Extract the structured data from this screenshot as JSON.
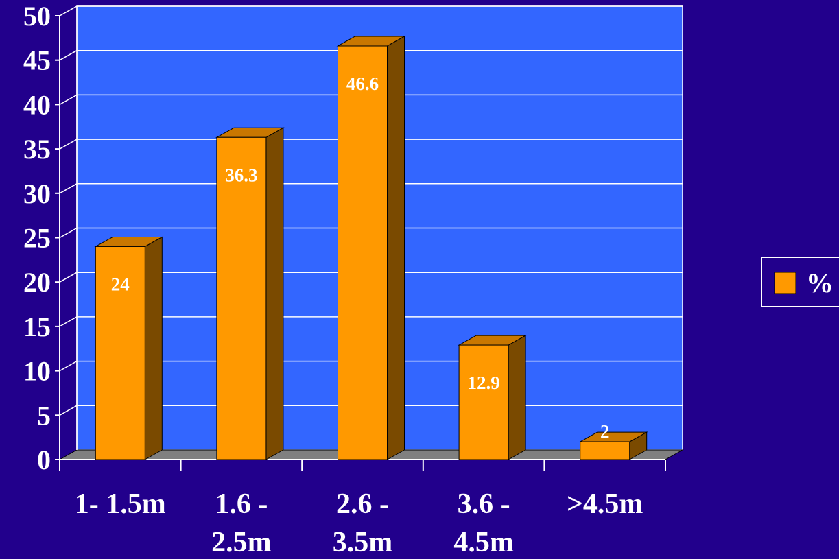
{
  "chart_data": {
    "type": "bar",
    "categories": [
      [
        "1- 1.5m"
      ],
      [
        "1.6 -",
        "2.5m"
      ],
      [
        "2.6 -",
        "3.5m"
      ],
      [
        "3.6 -",
        "4.5m"
      ],
      [
        ">4.5m"
      ]
    ],
    "series": [
      {
        "name": "%",
        "values": [
          24,
          36.3,
          46.6,
          12.9,
          2
        ]
      }
    ],
    "data_labels": [
      "24",
      "36.3",
      "46.6",
      "12.9",
      "2"
    ],
    "y_ticks": [
      "0",
      "5",
      "10",
      "15",
      "20",
      "25",
      "30",
      "35",
      "40",
      "45",
      "50"
    ],
    "ylim": [
      0,
      50
    ],
    "y_step": 5,
    "grid": true,
    "legend_position": "right",
    "style": "3d-column",
    "colors": {
      "background": "#22008c",
      "plot_area": "#3366ff",
      "floor": "#808080",
      "bar_front": "#ff9900",
      "bar_top": "#c97700",
      "bar_side": "#7a4a00",
      "gridline": "#ffffff",
      "text": "#ffffff"
    }
  }
}
